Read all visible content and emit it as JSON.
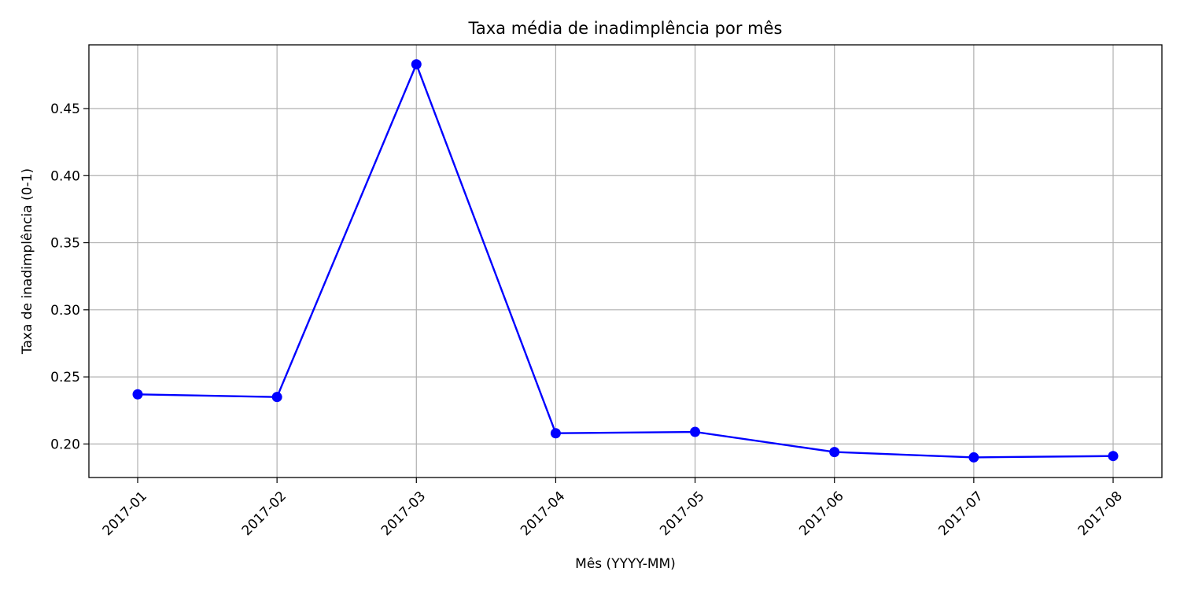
{
  "chart_data": {
    "type": "line",
    "title": "Taxa média de inadimplência por mês",
    "xlabel": "Mês (YYYY-MM)",
    "ylabel": "Taxa de inadimplência (0-1)",
    "categories": [
      "2017-01",
      "2017-02",
      "2017-03",
      "2017-04",
      "2017-05",
      "2017-06",
      "2017-07",
      "2017-08"
    ],
    "series": [
      {
        "values": [
          0.237,
          0.235,
          0.483,
          0.208,
          0.209,
          0.194,
          0.19,
          0.191
        ],
        "color": "#0000ff",
        "marker": "circle"
      }
    ],
    "yticks": [
      "0.20",
      "0.25",
      "0.30",
      "0.35",
      "0.40",
      "0.45"
    ],
    "ylim": [
      0.175,
      0.4975
    ],
    "grid": true,
    "legend": "none"
  }
}
